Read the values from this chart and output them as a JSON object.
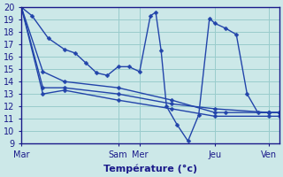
{
  "xlabel": "Température (°c)",
  "bg_color": "#cce8e8",
  "grid_color": "#99cccc",
  "line_color": "#2244aa",
  "ylim": [
    9,
    20
  ],
  "xlim_start": 0,
  "xlim_end": 24,
  "day_tick_positions": [
    0,
    9,
    11,
    18,
    23
  ],
  "day_tick_labels": [
    "Mar",
    "Sam",
    "Mer",
    "Jeu",
    "Ven"
  ],
  "series_main_x": [
    0,
    1,
    2.5,
    4,
    5,
    6,
    7,
    8,
    9,
    10,
    11,
    12,
    12.5,
    13,
    13.5,
    14.5,
    15.5,
    16.5,
    17.5,
    18,
    19,
    20,
    21,
    22,
    23,
    24
  ],
  "series_main_y": [
    20.0,
    19.3,
    17.5,
    16.6,
    16.3,
    15.5,
    14.7,
    14.5,
    15.2,
    15.2,
    14.8,
    19.3,
    19.6,
    16.5,
    12.0,
    10.5,
    9.2,
    11.3,
    19.1,
    18.7,
    18.3,
    17.8,
    13.0,
    11.5,
    11.5,
    11.5
  ],
  "series_trend1_x": [
    0,
    2,
    4,
    9,
    14,
    18,
    19,
    23,
    24
  ],
  "series_trend1_y": [
    20.0,
    14.8,
    14.0,
    13.5,
    12.5,
    11.5,
    11.5,
    11.5,
    11.5
  ],
  "series_trend2_x": [
    0,
    2,
    4,
    9,
    14,
    18,
    23,
    24
  ],
  "series_trend2_y": [
    20.0,
    13.0,
    13.3,
    12.5,
    11.8,
    11.2,
    11.2,
    11.2
  ],
  "series_trend3_x": [
    0,
    2,
    4,
    9,
    14,
    18,
    23,
    24
  ],
  "series_trend3_y": [
    20.0,
    13.5,
    13.5,
    13.0,
    12.2,
    11.8,
    11.5,
    11.5
  ],
  "marker": "D",
  "marker_size": 2.5,
  "line_width": 1.0
}
